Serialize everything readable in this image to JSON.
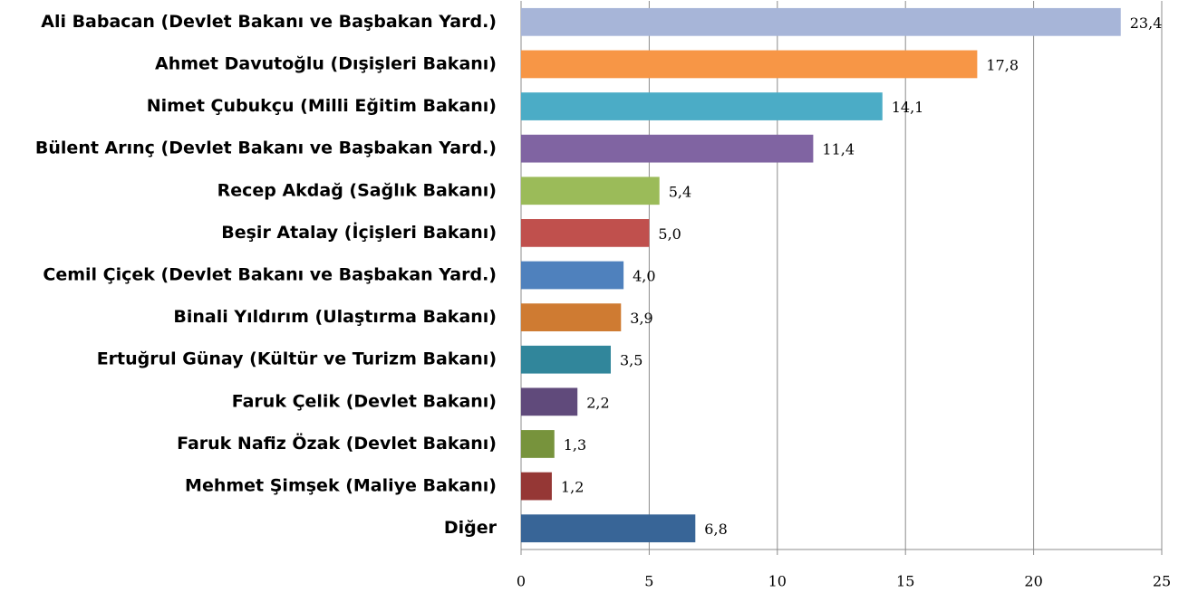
{
  "chart_data": {
    "type": "barh",
    "categories": [
      "Ali Babacan (Devlet Bakanı ve Başbakan Yard.)",
      "Ahmet Davutoğlu (Dışişleri Bakanı)",
      "Nimet Çubukçu (Milli Eğitim Bakanı)",
      "Bülent Arınç (Devlet Bakanı ve Başbakan Yard.)",
      "Recep Akdağ (Sağlık Bakanı)",
      "Beşir Atalay (İçişleri  Bakanı)",
      "Cemil Çiçek (Devlet Bakanı ve Başbakan Yard.)",
      "Binali Yıldırım (Ulaştırma Bakanı)",
      "Ertuğrul Günay (Kültür ve Turizm Bakanı)",
      "Faruk Çelik (Devlet Bakanı)",
      "Faruk Nafiz Özak (Devlet Bakanı)",
      "Mehmet Şimşek (Maliye Bakanı)",
      "Diğer"
    ],
    "values": [
      23.4,
      17.8,
      14.1,
      11.4,
      5.4,
      5.0,
      4.0,
      3.9,
      3.5,
      2.2,
      1.3,
      1.2,
      6.8
    ],
    "value_labels": [
      "23,4",
      "17,8",
      "14,1",
      "11,4",
      "5,4",
      "5,0",
      "4,0",
      "3,9",
      "3,5",
      "2,2",
      "1,3",
      "1,2",
      "6,8"
    ],
    "colors": [
      "#a7b5d8",
      "#f79646",
      "#4bacc6",
      "#8064a2",
      "#9bbb59",
      "#c0504d",
      "#4f81bd",
      "#cf7b32",
      "#31869b",
      "#604a7b",
      "#77933c",
      "#953735",
      "#386597"
    ],
    "xlim": [
      0,
      25
    ],
    "xticks": [
      0,
      5,
      10,
      15,
      20,
      25
    ],
    "grid": true
  }
}
